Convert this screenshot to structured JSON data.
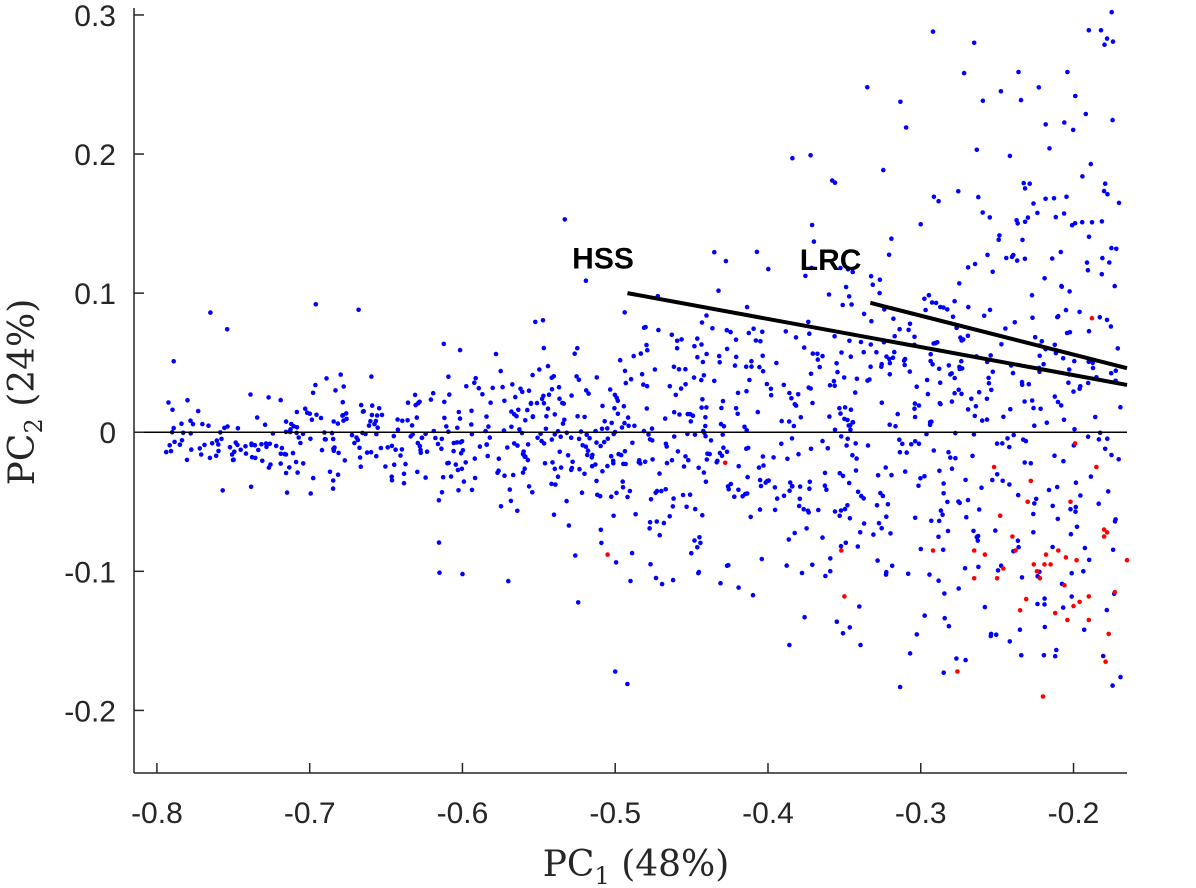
{
  "chart_data": {
    "type": "scatter",
    "title": "",
    "xlabel": {
      "base": "PC",
      "sub": "1",
      "suffix": " (48%)"
    },
    "ylabel": {
      "base": "PC",
      "sub": "2",
      "suffix": " (24%)"
    },
    "xlim": [
      -0.815,
      -0.165
    ],
    "ylim": [
      -0.245,
      0.305
    ],
    "xticks": [
      -0.8,
      -0.7,
      -0.6,
      -0.5,
      -0.4,
      -0.3,
      -0.2
    ],
    "xtick_labels": [
      "-0.8",
      "-0.7",
      "-0.6",
      "-0.5",
      "-0.4",
      "-0.3",
      "-0.2"
    ],
    "yticks": [
      -0.2,
      -0.1,
      0,
      0.1,
      0.2,
      0.3
    ],
    "ytick_labels": [
      "-0.2",
      "-0.1",
      "0",
      "0.1",
      "0.2",
      "0.3"
    ],
    "grid": false,
    "zero_line": 0,
    "colors": {
      "blue_points": "#0000ff",
      "red_points": "#ff0000",
      "lines": "#000000",
      "axis": "#262626"
    },
    "red_points": [
      [
        -0.505,
        -0.088
      ],
      [
        -0.428,
        -0.022
      ],
      [
        -0.352,
        -0.085
      ],
      [
        -0.35,
        -0.118
      ],
      [
        -0.292,
        -0.085
      ],
      [
        -0.276,
        -0.172
      ],
      [
        -0.265,
        -0.085
      ],
      [
        -0.265,
        -0.105
      ],
      [
        -0.258,
        -0.088
      ],
      [
        -0.252,
        -0.025
      ],
      [
        -0.25,
        -0.105
      ],
      [
        -0.248,
        -0.06
      ],
      [
        -0.246,
        -0.098
      ],
      [
        -0.24,
        -0.075
      ],
      [
        -0.238,
        -0.085
      ],
      [
        -0.235,
        -0.128
      ],
      [
        -0.231,
        -0.12
      ],
      [
        -0.23,
        -0.05
      ],
      [
        -0.228,
        -0.035
      ],
      [
        -0.226,
        -0.095
      ],
      [
        -0.224,
        -0.1
      ],
      [
        -0.222,
        -0.105
      ],
      [
        -0.22,
        -0.19
      ],
      [
        -0.219,
        -0.095
      ],
      [
        -0.218,
        -0.088
      ],
      [
        -0.215,
        -0.095
      ],
      [
        -0.212,
        -0.13
      ],
      [
        -0.21,
        -0.085
      ],
      [
        -0.206,
        -0.11
      ],
      [
        -0.205,
        -0.09
      ],
      [
        -0.204,
        -0.135
      ],
      [
        -0.202,
        -0.05
      ],
      [
        -0.2,
        -0.125
      ],
      [
        -0.199,
        -0.008
      ],
      [
        -0.198,
        -0.092
      ],
      [
        -0.196,
        -0.122
      ],
      [
        -0.19,
        -0.118
      ],
      [
        -0.19,
        -0.135
      ],
      [
        -0.188,
        0.082
      ],
      [
        -0.185,
        -0.025
      ],
      [
        -0.18,
        -0.07
      ],
      [
        -0.18,
        -0.075
      ],
      [
        -0.179,
        -0.165
      ],
      [
        -0.178,
        -0.072
      ],
      [
        -0.177,
        -0.145
      ],
      [
        -0.173,
        -0.115
      ],
      [
        -0.165,
        -0.092
      ]
    ],
    "blue_points": {
      "count": 1150,
      "seed": 12345,
      "note_extremes": [
        [
          -0.789,
          0.051
        ],
        [
          -0.765,
          0.086
        ],
        [
          -0.754,
          0.074
        ],
        [
          -0.668,
          0.088
        ],
        [
          -0.696,
          0.092
        ],
        [
          -0.533,
          0.153
        ],
        [
          -0.492,
          -0.181
        ],
        [
          -0.5,
          -0.172
        ],
        [
          -0.384,
          0.197
        ],
        [
          -0.358,
          0.181
        ],
        [
          -0.335,
          0.248
        ],
        [
          -0.292,
          0.288
        ],
        [
          -0.265,
          0.28
        ],
        [
          -0.175,
          0.302
        ],
        [
          -0.182,
          0.289
        ],
        [
          -0.178,
          0.283
        ],
        [
          -0.19,
          0.289
        ],
        [
          -0.204,
          0.259
        ],
        [
          -0.236,
          0.259
        ],
        [
          -0.307,
          -0.159
        ],
        [
          -0.212,
          -0.161
        ],
        [
          -0.386,
          -0.153
        ],
        [
          -0.615,
          -0.101
        ],
        [
          -0.6,
          -0.102
        ],
        [
          -0.57,
          -0.107
        ],
        [
          -0.789,
          0.003
        ],
        [
          -0.78,
          0.023
        ],
        [
          -0.79,
          0.0
        ]
      ]
    },
    "lines": [
      {
        "label": "HSS",
        "x": [
          -0.492,
          -0.165
        ],
        "y": [
          0.1,
          0.034
        ],
        "label_at": [
          -0.508,
          0.125
        ]
      },
      {
        "label": "LRC",
        "x": [
          -0.333,
          -0.165
        ],
        "y": [
          0.093,
          0.046
        ],
        "label_at": [
          -0.359,
          0.124
        ]
      }
    ]
  }
}
